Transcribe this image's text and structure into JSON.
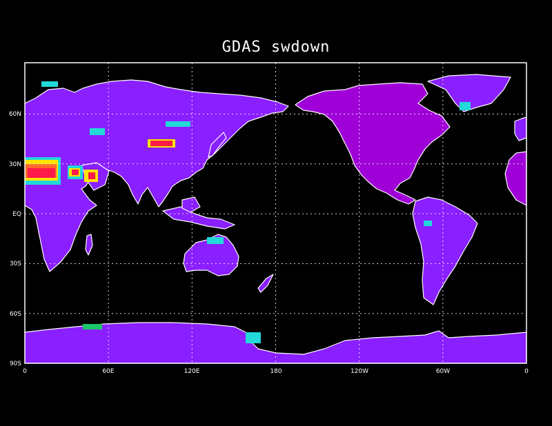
{
  "title": "GDAS swdown",
  "map": {
    "projection": "cylindrical-equidistant",
    "lon_range": [
      0,
      360
    ],
    "lat_range": [
      -90,
      80
    ],
    "grid": true,
    "grid_style": "dotted-white",
    "background_color": "#000000",
    "coastline_color": "#ffffff",
    "land_colors": {
      "base_low": "#8a1fff",
      "americas_high": "#a000d8",
      "cyan": "#22d8d8",
      "green": "#1cc66a",
      "yellow": "#ffe400",
      "orange": "#ff6a2a",
      "red": "#ff1a4a"
    },
    "lon_ticks": [
      "0",
      "60E",
      "120E",
      "180",
      "120W",
      "60W",
      "0"
    ],
    "lat_ticks": [
      "90S",
      "60S",
      "30S",
      "EQ",
      "30N",
      "60N"
    ]
  }
}
